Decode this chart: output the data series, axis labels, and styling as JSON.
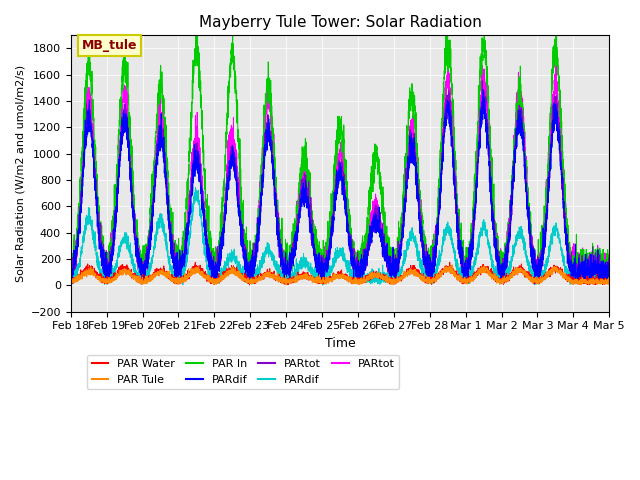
{
  "title": "Mayberry Tule Tower: Solar Radiation",
  "xlabel": "Time",
  "ylabel": "Solar Radiation (W/m2 and umol/m2/s)",
  "ylim": [
    -200,
    1900
  ],
  "yticks": [
    -200,
    0,
    200,
    400,
    600,
    800,
    1000,
    1200,
    1400,
    1600,
    1800
  ],
  "background_color": "#e8e8e8",
  "legend_label": "MB_tule",
  "legend_box_color": "#ffffcc",
  "legend_box_edge": "#cccc00",
  "series_colors": {
    "PAR Water": "#ff0000",
    "PAR Tule": "#ff8800",
    "PAR In": "#00cc00",
    "PARdif_blue": "#0000ff",
    "PARtot_purple": "#8800cc",
    "PARdif_cyan": "#00cccc",
    "PARtot_magenta": "#ff00ff"
  },
  "day_labels": [
    "Feb 18",
    "Feb 19",
    "Feb 20",
    "Feb 21",
    "Feb 22",
    "Feb 23",
    "Feb 24",
    "Feb 25",
    "Feb 26",
    "Feb 27",
    "Feb 28",
    "Mar 1",
    "Mar 2",
    "Mar 3",
    "Mar 4",
    "Mar 5"
  ],
  "peaks_PAR_In": [
    1510,
    1550,
    1370,
    1650,
    1600,
    1370,
    820,
    1050,
    820,
    1280,
    1700,
    1700,
    1300,
    1650,
    0
  ],
  "peaks_PAR_water": [
    100,
    100,
    80,
    100,
    90,
    60,
    40,
    50,
    50,
    90,
    105,
    100,
    95,
    100,
    0
  ],
  "peaks_PAR_tule": [
    75,
    80,
    70,
    85,
    80,
    55,
    40,
    45,
    50,
    80,
    100,
    95,
    90,
    95,
    0
  ],
  "peaks_magenta": [
    1310,
    1330,
    1160,
    1020,
    1010,
    1300,
    730,
    870,
    450,
    1080,
    1450,
    1450,
    1350,
    1400,
    0
  ],
  "peaks_cyan": [
    460,
    310,
    440,
    640,
    170,
    220,
    130,
    200,
    0,
    330,
    380,
    390,
    350,
    380,
    0
  ],
  "peaks_purple": [
    1200,
    1200,
    1050,
    900,
    900,
    1100,
    650,
    780,
    400,
    980,
    1300,
    1300,
    1200,
    1250,
    0
  ],
  "peaks_blue": [
    1150,
    1150,
    1000,
    850,
    850,
    1050,
    600,
    730,
    380,
    930,
    1250,
    1250,
    1150,
    1200,
    0
  ],
  "n_days": 15,
  "pts_per_day": 288
}
